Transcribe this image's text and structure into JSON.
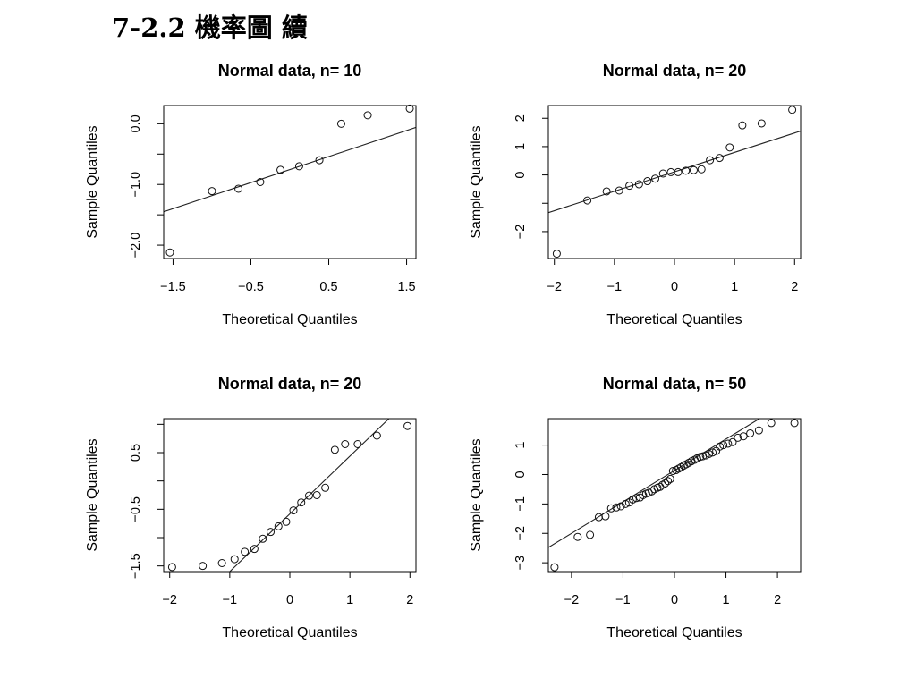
{
  "slide": {
    "title": "7-2.2 機率圖 續"
  },
  "chart_data": [
    {
      "type": "scatter",
      "title": "Normal data, n= 10",
      "xlabel": "Theoretical Quantiles",
      "ylabel": "Sample Quantiles",
      "xlim": [
        -1.62,
        1.62
      ],
      "ylim": [
        -2.22,
        0.3
      ],
      "xticks": [
        -1.5,
        -0.5,
        0.5,
        1.5
      ],
      "xtick_labels": [
        "−1.5",
        "−0.5",
        "0.5",
        "1.5"
      ],
      "yticks": [
        -2.0,
        -1.5,
        -1.0,
        -0.5,
        0.0
      ],
      "ytick_labels": [
        "−2.0",
        "",
        "−1.0",
        "",
        "0.0"
      ],
      "points": {
        "x": [
          -1.54,
          -1.0,
          -0.66,
          -0.38,
          -0.12,
          0.12,
          0.38,
          0.66,
          1.0,
          1.54
        ],
        "y": [
          -2.12,
          -1.11,
          -1.07,
          -0.96,
          -0.76,
          -0.7,
          -0.6,
          0.0,
          0.14,
          0.25
        ]
      },
      "line": {
        "x": [
          -1.62,
          1.62
        ],
        "y": [
          -1.45,
          -0.06
        ]
      },
      "grid": false
    },
    {
      "type": "scatter",
      "title": "Normal data, n= 20",
      "xlabel": "Theoretical Quantiles",
      "ylabel": "Sample Quantiles",
      "xlim": [
        -2.1,
        2.1
      ],
      "ylim": [
        -2.95,
        2.45
      ],
      "xticks": [
        -2,
        -1,
        0,
        1,
        2
      ],
      "xtick_labels": [
        "−2",
        "−1",
        "0",
        "1",
        "2"
      ],
      "yticks": [
        -2,
        -1,
        0,
        1,
        2
      ],
      "ytick_labels": [
        "−2",
        "",
        "0",
        "1",
        "2"
      ],
      "points": {
        "x": [
          -1.96,
          -1.45,
          -1.13,
          -0.92,
          -0.75,
          -0.59,
          -0.45,
          -0.32,
          -0.19,
          -0.06,
          0.06,
          0.19,
          0.32,
          0.45,
          0.59,
          0.75,
          0.92,
          1.13,
          1.45,
          1.96
        ],
        "y": [
          -2.78,
          -0.9,
          -0.58,
          -0.55,
          -0.38,
          -0.33,
          -0.22,
          -0.13,
          0.05,
          0.1,
          0.1,
          0.15,
          0.17,
          0.2,
          0.52,
          0.6,
          0.97,
          1.75,
          1.82,
          2.3
        ]
      },
      "line": {
        "x": [
          -2.1,
          2.1
        ],
        "y": [
          -1.33,
          1.55
        ]
      },
      "grid": false
    },
    {
      "type": "scatter",
      "title": "Normal data, n= 20",
      "xlabel": "Theoretical Quantiles",
      "ylabel": "Sample Quantiles",
      "xlim": [
        -2.1,
        2.1
      ],
      "ylim": [
        -1.6,
        1.1
      ],
      "xticks": [
        -2,
        -1,
        0,
        1,
        2
      ],
      "xtick_labels": [
        "−2",
        "−1",
        "0",
        "1",
        "2"
      ],
      "yticks": [
        -1.5,
        -1.0,
        -0.5,
        0.0,
        0.5,
        1.0
      ],
      "ytick_labels": [
        "−1.5",
        "",
        "−0.5",
        "",
        "0.5",
        ""
      ],
      "points": {
        "x": [
          -1.96,
          -1.45,
          -1.13,
          -0.92,
          -0.75,
          -0.59,
          -0.45,
          -0.32,
          -0.19,
          -0.06,
          0.06,
          0.19,
          0.32,
          0.45,
          0.59,
          0.75,
          0.92,
          1.13,
          1.45,
          1.96
        ],
        "y": [
          -1.52,
          -1.5,
          -1.45,
          -1.38,
          -1.25,
          -1.2,
          -1.02,
          -0.9,
          -0.8,
          -0.72,
          -0.52,
          -0.38,
          -0.26,
          -0.25,
          -0.12,
          0.55,
          0.65,
          0.65,
          0.8,
          0.97
        ],
        "note": ""
      },
      "line": {
        "x": [
          -1.0,
          1.65
        ],
        "y": [
          -1.6,
          1.1
        ]
      },
      "grid": false
    },
    {
      "type": "scatter",
      "title": "Normal data, n= 50",
      "xlabel": "Theoretical Quantiles",
      "ylabel": "Sample Quantiles",
      "xlim": [
        -2.45,
        2.45
      ],
      "ylim": [
        -3.3,
        1.9
      ],
      "xticks": [
        -2,
        -1,
        0,
        1,
        2
      ],
      "xtick_labels": [
        "−2",
        "−1",
        "0",
        "1",
        "2"
      ],
      "yticks": [
        -3,
        -2,
        -1,
        0,
        1
      ],
      "ytick_labels": [
        "−3",
        "−2",
        "−1",
        "0",
        "1"
      ],
      "points": {
        "x": [
          -2.33,
          -1.88,
          -1.64,
          -1.47,
          -1.34,
          -1.23,
          -1.13,
          -1.04,
          -0.95,
          -0.88,
          -0.81,
          -0.74,
          -0.67,
          -0.61,
          -0.55,
          -0.5,
          -0.44,
          -0.39,
          -0.33,
          -0.28,
          -0.23,
          -0.18,
          -0.13,
          -0.08,
          -0.03,
          0.03,
          0.08,
          0.13,
          0.18,
          0.23,
          0.28,
          0.33,
          0.39,
          0.44,
          0.5,
          0.55,
          0.61,
          0.67,
          0.74,
          0.81,
          0.88,
          0.95,
          1.04,
          1.13,
          1.23,
          1.34,
          1.47,
          1.64,
          1.88,
          2.33
        ],
        "y": [
          -3.15,
          -2.12,
          -2.05,
          -1.45,
          -1.42,
          -1.15,
          -1.12,
          -1.08,
          -1.0,
          -0.95,
          -0.85,
          -0.8,
          -0.78,
          -0.7,
          -0.65,
          -0.62,
          -0.57,
          -0.5,
          -0.45,
          -0.42,
          -0.35,
          -0.3,
          -0.22,
          -0.15,
          0.12,
          0.15,
          0.2,
          0.25,
          0.3,
          0.35,
          0.4,
          0.45,
          0.5,
          0.55,
          0.6,
          0.62,
          0.65,
          0.7,
          0.75,
          0.8,
          0.95,
          1.0,
          1.05,
          1.1,
          1.25,
          1.3,
          1.4,
          1.5,
          1.75,
          1.75
        ]
      },
      "line": {
        "x": [
          -2.45,
          1.65
        ],
        "y": [
          -2.48,
          1.9
        ]
      },
      "grid": false
    }
  ]
}
